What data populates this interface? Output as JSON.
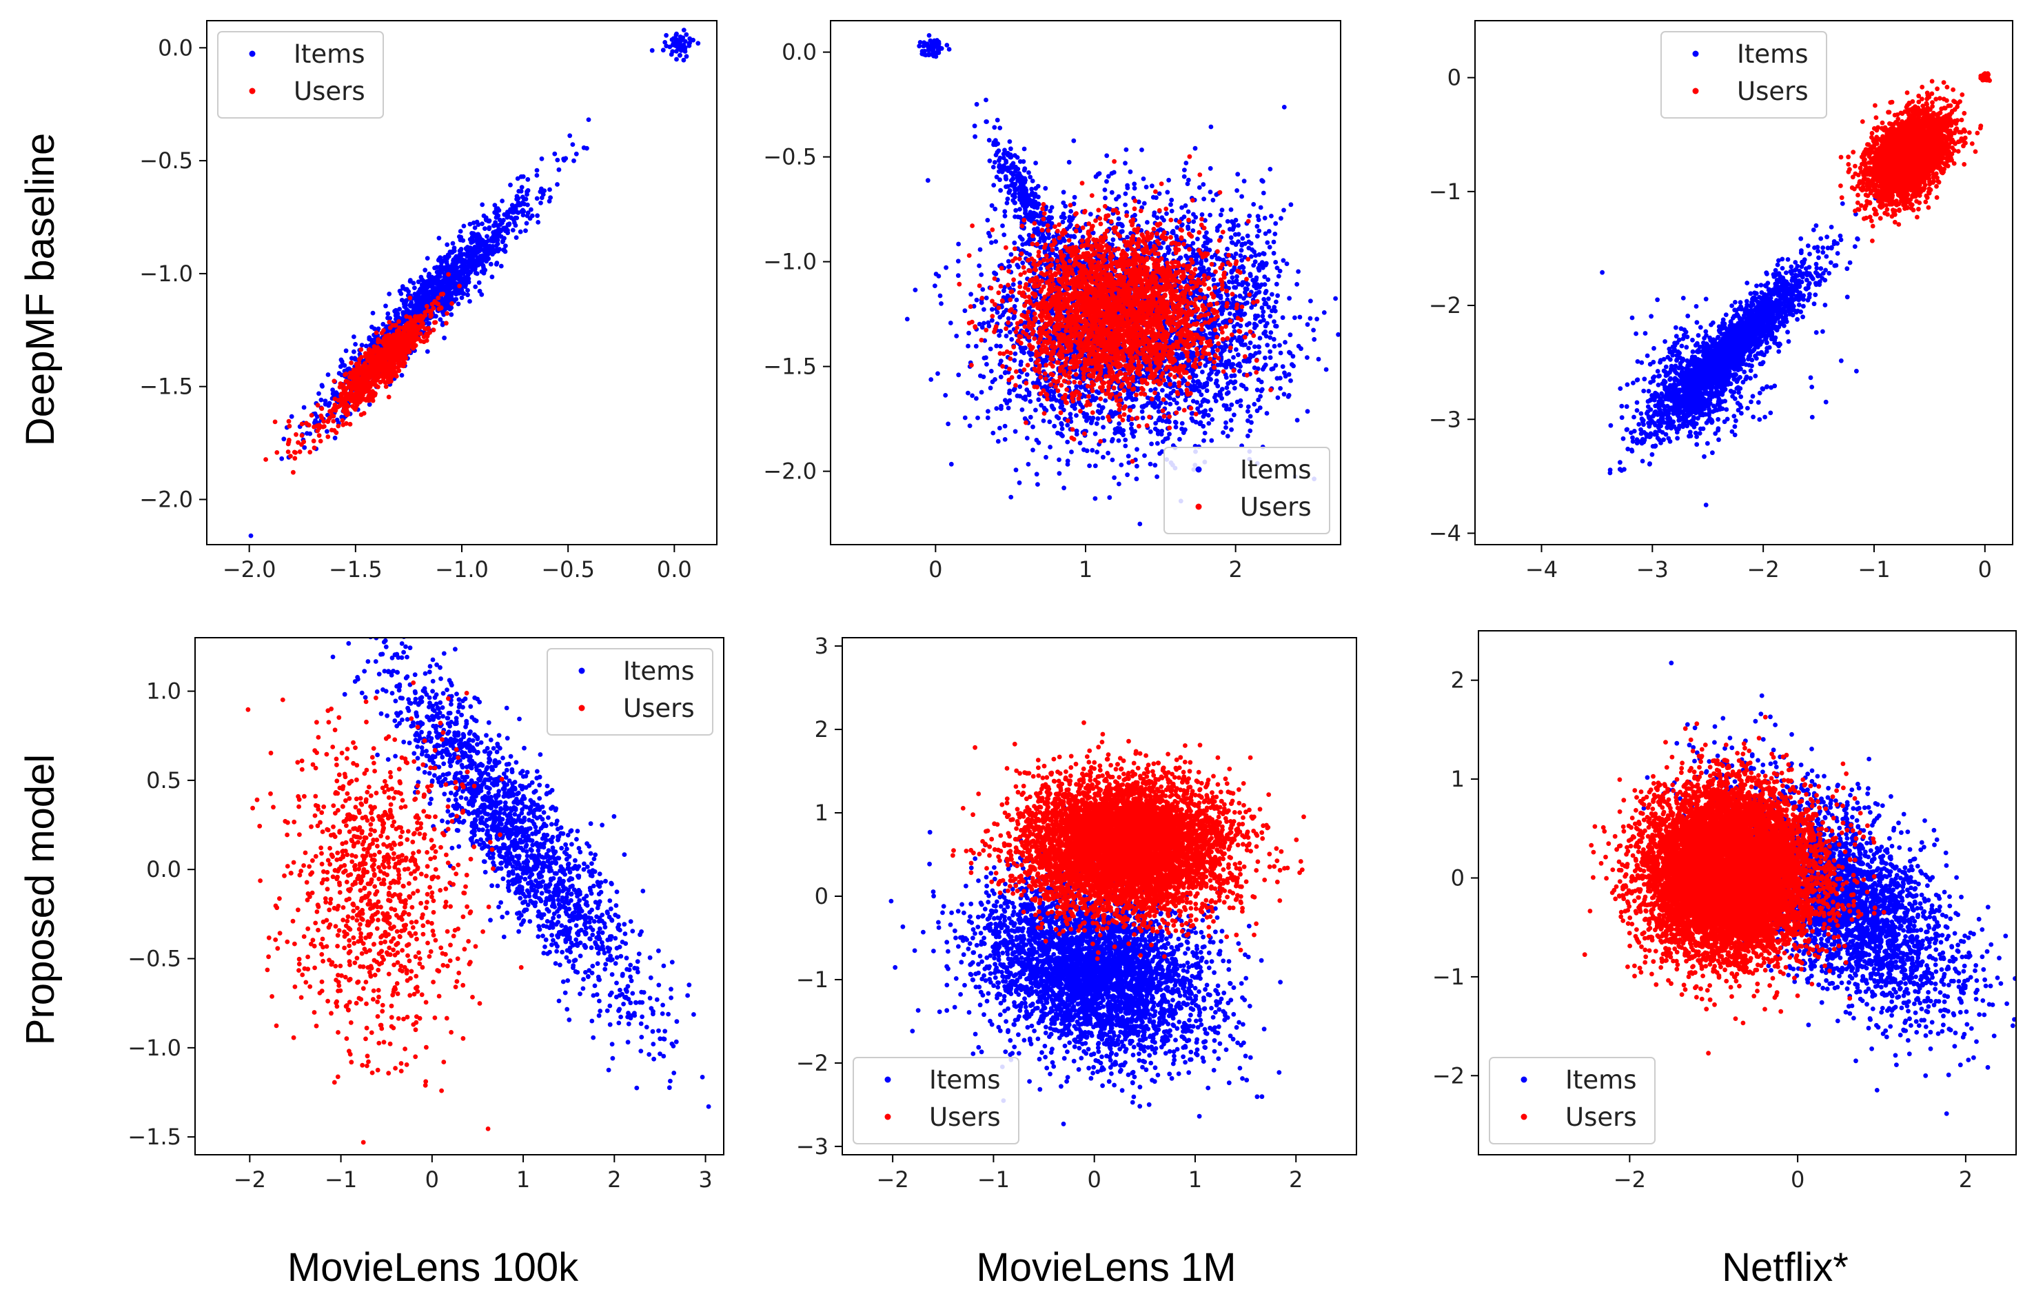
{
  "figure": {
    "row_labels": [
      "DeepMF baseline",
      "Proposed model"
    ],
    "column_labels": [
      "MovieLens 100k",
      "MovieLens 1M",
      "Netflix*"
    ]
  },
  "colors": {
    "items": "#0000ff",
    "users": "#ff0000"
  },
  "chart_data": [
    {
      "type": "scatter",
      "row": "DeepMF baseline",
      "dataset": "MovieLens 100k",
      "xlim": [
        -2.2,
        0.2
      ],
      "ylim": [
        -2.2,
        0.12
      ],
      "xticks": [
        -2.0,
        -1.5,
        -1.0,
        -0.5,
        0.0
      ],
      "xtick_labels": [
        "−2.0",
        "−1.5",
        "−1.0",
        "−0.5",
        "0.0"
      ],
      "yticks": [
        0.0,
        -0.5,
        -1.0,
        -1.5,
        -2.0
      ],
      "ytick_labels": [
        "0.0",
        "−0.5",
        "−1.0",
        "−1.5",
        "−2.0"
      ],
      "legend": {
        "position": "upper left",
        "entries": [
          "Items",
          "Users"
        ]
      },
      "series": [
        {
          "name": "Items",
          "color": "#0000ff",
          "clusters": [
            {
              "count": 1500,
              "center": [
                -1.15,
                -1.12
              ],
              "axis": [
                0.707,
                0.707
              ],
              "sd": [
                0.34,
                0.05
              ]
            },
            {
              "count": 60,
              "center": [
                0.02,
                0.01
              ],
              "axis": [
                1,
                0
              ],
              "sd": [
                0.03,
                0.025
              ]
            }
          ]
        },
        {
          "name": "Users",
          "color": "#ff0000",
          "clusters": [
            {
              "count": 900,
              "center": [
                -1.38,
                -1.4
              ],
              "axis": [
                0.707,
                0.707
              ],
              "sd": [
                0.16,
                0.04
              ]
            },
            {
              "count": 30,
              "center": [
                -1.75,
                -1.7
              ],
              "axis": [
                0.707,
                0.707
              ],
              "sd": [
                0.1,
                0.05
              ]
            }
          ]
        }
      ]
    },
    {
      "type": "scatter",
      "row": "DeepMF baseline",
      "dataset": "MovieLens 1M",
      "xlim": [
        -0.7,
        2.7
      ],
      "ylim": [
        -2.35,
        0.15
      ],
      "xticks": [
        0,
        1,
        2
      ],
      "xtick_labels": [
        "0",
        "1",
        "2"
      ],
      "yticks": [
        0.0,
        -0.5,
        -1.0,
        -1.5,
        -2.0
      ],
      "ytick_labels": [
        "0.0",
        "−0.5",
        "−1.0",
        "−1.5",
        "−2.0"
      ],
      "legend": {
        "position": "lower right",
        "entries": [
          "Items",
          "Users"
        ]
      },
      "series": [
        {
          "name": "Items",
          "color": "#0000ff",
          "clusters": [
            {
              "count": 2800,
              "center": [
                1.2,
                -1.3
              ],
              "axis": [
                1,
                0
              ],
              "sd": [
                0.42,
                0.28
              ]
            },
            {
              "count": 300,
              "center": [
                0.6,
                -0.7
              ],
              "axis": [
                0.6,
                -0.8
              ],
              "sd": [
                0.22,
                0.05
              ]
            },
            {
              "count": 500,
              "center": [
                1.95,
                -1.25
              ],
              "axis": [
                1,
                0
              ],
              "sd": [
                0.25,
                0.28
              ]
            },
            {
              "count": 60,
              "center": [
                -0.02,
                0.02
              ],
              "axis": [
                1,
                0
              ],
              "sd": [
                0.04,
                0.02
              ]
            }
          ]
        },
        {
          "name": "Users",
          "color": "#ff0000",
          "clusters": [
            {
              "count": 3000,
              "center": [
                1.2,
                -1.25
              ],
              "axis": [
                0,
                1
              ],
              "sd": [
                0.2,
                0.32
              ]
            }
          ]
        }
      ]
    },
    {
      "type": "scatter",
      "row": "DeepMF baseline",
      "dataset": "Netflix*",
      "xlim": [
        -4.6,
        0.25
      ],
      "ylim": [
        -4.1,
        0.5
      ],
      "xticks": [
        -4,
        -3,
        -2,
        -1,
        0
      ],
      "xtick_labels": [
        "−4",
        "−3",
        "−2",
        "−1",
        "0"
      ],
      "yticks": [
        0,
        -1,
        -2,
        -3,
        -4
      ],
      "ytick_labels": [
        "0",
        "−1",
        "−2",
        "−3",
        "−4"
      ],
      "legend": {
        "position": "upper center",
        "entries": [
          "Items",
          "Users"
        ]
      },
      "series": [
        {
          "name": "Items",
          "color": "#0000ff",
          "clusters": [
            {
              "count": 2200,
              "center": [
                -2.3,
                -2.4
              ],
              "axis": [
                0.707,
                0.707
              ],
              "sd": [
                0.5,
                0.1
              ]
            },
            {
              "count": 400,
              "center": [
                -2.6,
                -2.7
              ],
              "axis": [
                1,
                0
              ],
              "sd": [
                0.28,
                0.22
              ]
            },
            {
              "count": 50,
              "center": [
                -2.2,
                -2.6
              ],
              "axis": [
                1,
                0
              ],
              "sd": [
                0.6,
                0.5
              ]
            }
          ]
        },
        {
          "name": "Users",
          "color": "#ff0000",
          "clusters": [
            {
              "count": 3200,
              "center": [
                -0.7,
                -0.7
              ],
              "axis": [
                0.707,
                0.707
              ],
              "sd": [
                0.22,
                0.14
              ]
            },
            {
              "count": 40,
              "center": [
                0.0,
                0.0
              ],
              "axis": [
                1,
                0
              ],
              "sd": [
                0.02,
                0.02
              ]
            }
          ]
        }
      ]
    },
    {
      "type": "scatter",
      "row": "Proposed model",
      "dataset": "MovieLens 100k",
      "xlim": [
        -2.6,
        3.2
      ],
      "ylim": [
        -1.6,
        1.3
      ],
      "xticks": [
        -2,
        -1,
        0,
        1,
        2,
        3
      ],
      "xtick_labels": [
        "−2",
        "−1",
        "0",
        "1",
        "2",
        "3"
      ],
      "yticks": [
        1.0,
        0.5,
        0.0,
        -0.5,
        -1.0,
        -1.5
      ],
      "ytick_labels": [
        "1.0",
        "0.5",
        "0.0",
        "−0.5",
        "−1.0",
        "−1.5"
      ],
      "legend": {
        "position": "upper right",
        "entries": [
          "Items",
          "Users"
        ]
      },
      "series": [
        {
          "name": "Items",
          "color": "#0000ff",
          "clusters": [
            {
              "count": 1680,
              "center": [
                0.9,
                0.2
              ],
              "axis": [
                0.83,
                -0.56
              ],
              "sd": [
                0.85,
                0.18
              ]
            }
          ]
        },
        {
          "name": "Users",
          "color": "#ff0000",
          "clusters": [
            {
              "count": 940,
              "center": [
                -0.6,
                -0.1
              ],
              "axis": [
                0,
                1
              ],
              "sd": [
                0.45,
                0.5
              ]
            }
          ]
        }
      ]
    },
    {
      "type": "scatter",
      "row": "Proposed model",
      "dataset": "MovieLens 1M",
      "xlim": [
        -2.5,
        2.6
      ],
      "ylim": [
        -3.1,
        3.1
      ],
      "xticks": [
        -2,
        -1,
        0,
        1,
        2
      ],
      "xtick_labels": [
        "−2",
        "−1",
        "0",
        "1",
        "2"
      ],
      "yticks": [
        3,
        2,
        1,
        0,
        -1,
        -2,
        -3
      ],
      "ytick_labels": [
        "3",
        "2",
        "1",
        "0",
        "−1",
        "−2",
        "−3"
      ],
      "legend": {
        "position": "lower left",
        "entries": [
          "Items",
          "Users"
        ]
      },
      "series": [
        {
          "name": "Items",
          "color": "#0000ff",
          "clusters": [
            {
              "count": 3700,
              "center": [
                0.0,
                -0.9
              ],
              "axis": [
                0.8,
                -0.6
              ],
              "sd": [
                0.6,
                0.45
              ]
            }
          ]
        },
        {
          "name": "Users",
          "color": "#ff0000",
          "clusters": [
            {
              "count": 6000,
              "center": [
                0.3,
                0.6
              ],
              "axis": [
                1,
                0
              ],
              "sd": [
                0.5,
                0.4
              ]
            }
          ]
        }
      ]
    },
    {
      "type": "scatter",
      "row": "Proposed model",
      "dataset": "Netflix*",
      "xlim": [
        -3.8,
        2.6
      ],
      "ylim": [
        -2.8,
        2.5
      ],
      "xticks": [
        -2,
        0,
        2
      ],
      "xtick_labels": [
        "−2",
        "0",
        "2"
      ],
      "yticks": [
        2,
        1,
        0,
        -1,
        -2
      ],
      "ytick_labels": [
        "2",
        "1",
        "0",
        "−1",
        "−2"
      ],
      "legend": {
        "position": "lower left",
        "entries": [
          "Items",
          "Users"
        ]
      },
      "series": [
        {
          "name": "Items",
          "color": "#0000ff",
          "clusters": [
            {
              "count": 3000,
              "center": [
                0.5,
                -0.2
              ],
              "axis": [
                0.8,
                -0.6
              ],
              "sd": [
                0.85,
                0.38
              ]
            }
          ]
        },
        {
          "name": "Users",
          "color": "#ff0000",
          "clusters": [
            {
              "count": 9000,
              "center": [
                -0.8,
                0.05
              ],
              "axis": [
                0,
                1
              ],
              "sd": [
                0.42,
                0.5
              ]
            }
          ]
        }
      ]
    }
  ]
}
